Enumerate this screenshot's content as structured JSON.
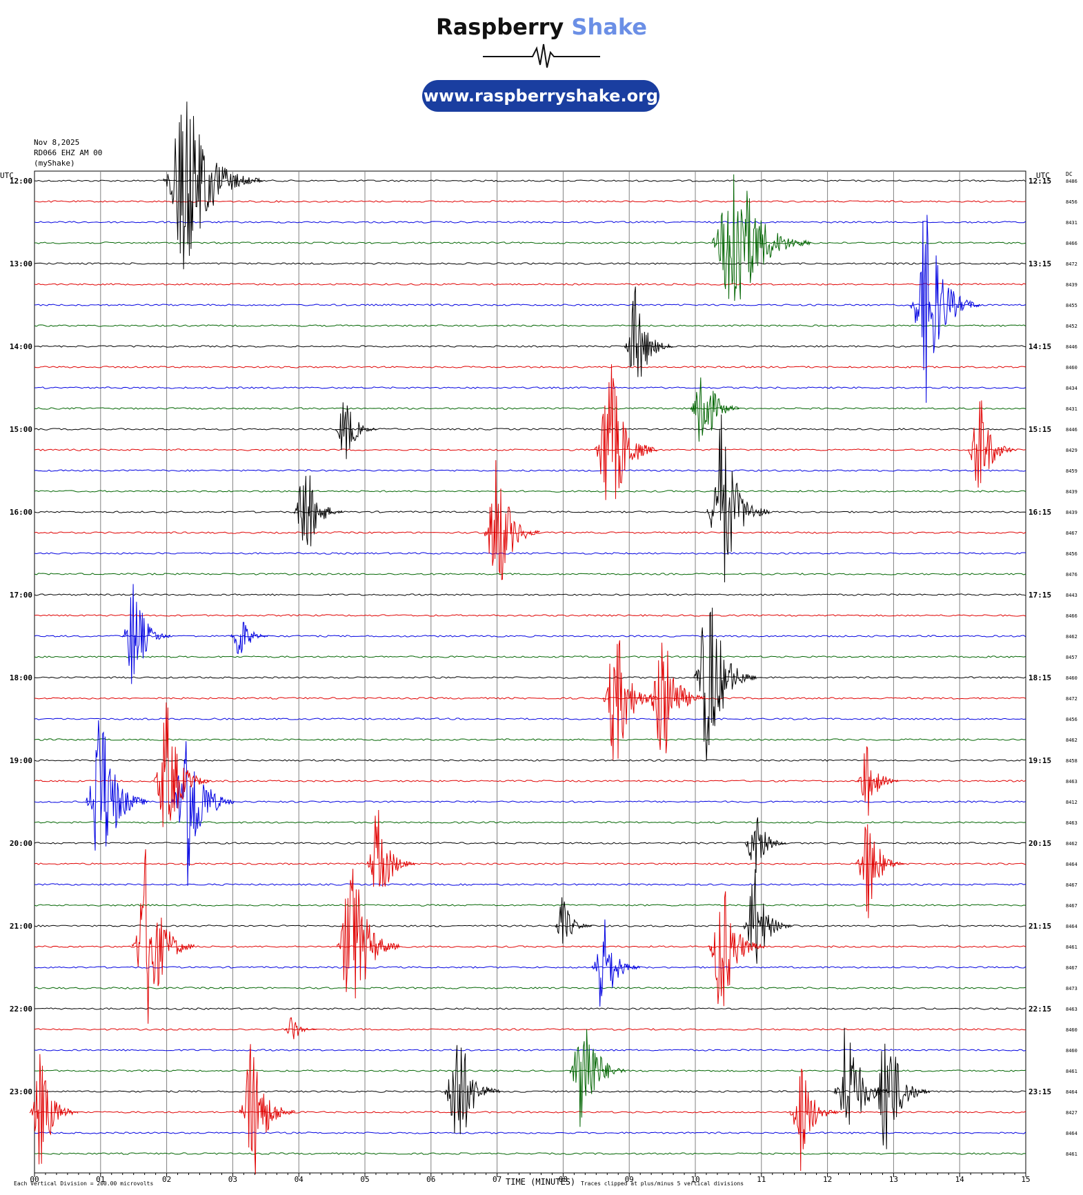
{
  "header": {
    "brand_primary": "Raspberry",
    "brand_secondary": "Shake",
    "url": "www.raspberryshake.org"
  },
  "info": {
    "date": "Nov 8,2025",
    "station": "RD066 EHZ AM 00",
    "network": "(myShake)"
  },
  "colors": {
    "accent": "#1a3ea0",
    "brand_secondary": "#6b8fe6",
    "trace_colors": [
      "#000000",
      "#e00000",
      "#0000e0",
      "#006400"
    ]
  },
  "chart_data": {
    "type": "line",
    "title": "",
    "left_axis_label": "UTC",
    "right_axis_label": "UTC",
    "dc_label": "DC",
    "xlabel": "TIME (MINUTES)",
    "x_ticks": [
      "00",
      "01",
      "02",
      "03",
      "04",
      "05",
      "06",
      "07",
      "08",
      "09",
      "10",
      "11",
      "12",
      "13",
      "14",
      "15"
    ],
    "xlim": [
      0,
      15
    ],
    "left_hour_labels": [
      "12:00",
      "13:00",
      "14:00",
      "15:00",
      "16:00",
      "17:00",
      "18:00",
      "19:00",
      "20:00",
      "21:00",
      "22:00",
      "23:00"
    ],
    "right_hour_labels": [
      "12:15",
      "13:15",
      "14:15",
      "15:15",
      "16:15",
      "17:15",
      "18:15",
      "19:15",
      "20:15",
      "21:15",
      "22:15",
      "23:15"
    ],
    "dc_offsets": [
      "8486",
      "8456",
      "8431",
      "8466",
      "8472",
      "8439",
      "8455",
      "8452",
      "8446",
      "8460",
      "8434",
      "8431",
      "8446",
      "8429",
      "8459",
      "8439",
      "8439",
      "8467",
      "8456",
      "8476",
      "8443",
      "8466",
      "8462",
      "8457",
      "8460",
      "8472",
      "8456",
      "8462",
      "8458",
      "8463",
      "8412",
      "8463",
      "8462",
      "8464",
      "8467",
      "8467",
      "8464",
      "8461",
      "8467",
      "8473",
      "8463",
      "8460",
      "8460",
      "8461",
      "8464",
      "8427",
      "8464",
      "8461"
    ],
    "footer_scale": "Each Vertical Division =  200.00 microvolts",
    "footer_clip": "Traces clipped at plus/minus 5 vertical divisions",
    "events": [
      {
        "trace": 0,
        "minute": 2.3,
        "amp": 10
      },
      {
        "trace": 3,
        "minute": 10.6,
        "amp": 10
      },
      {
        "trace": 6,
        "minute": 13.5,
        "amp": 6
      },
      {
        "trace": 8,
        "minute": 9.1,
        "amp": 3
      },
      {
        "trace": 11,
        "minute": 10.1,
        "amp": 3
      },
      {
        "trace": 12,
        "minute": 4.7,
        "amp": 2
      },
      {
        "trace": 13,
        "minute": 8.7,
        "amp": 5
      },
      {
        "trace": 13,
        "minute": 14.3,
        "amp": 3
      },
      {
        "trace": 16,
        "minute": 4.1,
        "amp": 3
      },
      {
        "trace": 16,
        "minute": 10.4,
        "amp": 5
      },
      {
        "trace": 17,
        "minute": 7.0,
        "amp": 4
      },
      {
        "trace": 22,
        "minute": 1.5,
        "amp": 3
      },
      {
        "trace": 22,
        "minute": 3.1,
        "amp": 1.5
      },
      {
        "trace": 24,
        "minute": 10.2,
        "amp": 5
      },
      {
        "trace": 25,
        "minute": 8.8,
        "amp": 4
      },
      {
        "trace": 25,
        "minute": 9.5,
        "amp": 4
      },
      {
        "trace": 29,
        "minute": 12.6,
        "amp": 2
      },
      {
        "trace": 30,
        "minute": 1.0,
        "amp": 5
      },
      {
        "trace": 30,
        "minute": 2.3,
        "amp": 5
      },
      {
        "trace": 29,
        "minute": 2.0,
        "amp": 4
      },
      {
        "trace": 32,
        "minute": 10.9,
        "amp": 2
      },
      {
        "trace": 33,
        "minute": 5.2,
        "amp": 3
      },
      {
        "trace": 33,
        "minute": 12.6,
        "amp": 3
      },
      {
        "trace": 36,
        "minute": 8.0,
        "amp": 1.5
      },
      {
        "trace": 36,
        "minute": 10.9,
        "amp": 3
      },
      {
        "trace": 37,
        "minute": 1.7,
        "amp": 5
      },
      {
        "trace": 37,
        "minute": 4.8,
        "amp": 5
      },
      {
        "trace": 37,
        "minute": 10.4,
        "amp": 4
      },
      {
        "trace": 38,
        "minute": 8.6,
        "amp": 3
      },
      {
        "trace": 41,
        "minute": 3.9,
        "amp": 0.8
      },
      {
        "trace": 43,
        "minute": 8.3,
        "amp": 4
      },
      {
        "trace": 44,
        "minute": 6.4,
        "amp": 4
      },
      {
        "trace": 44,
        "minute": 12.3,
        "amp": 4
      },
      {
        "trace": 44,
        "minute": 12.9,
        "amp": 4
      },
      {
        "trace": 45,
        "minute": 0.1,
        "amp": 3
      },
      {
        "trace": 45,
        "minute": 3.3,
        "amp": 4
      },
      {
        "trace": 45,
        "minute": 11.6,
        "amp": 3
      }
    ]
  }
}
